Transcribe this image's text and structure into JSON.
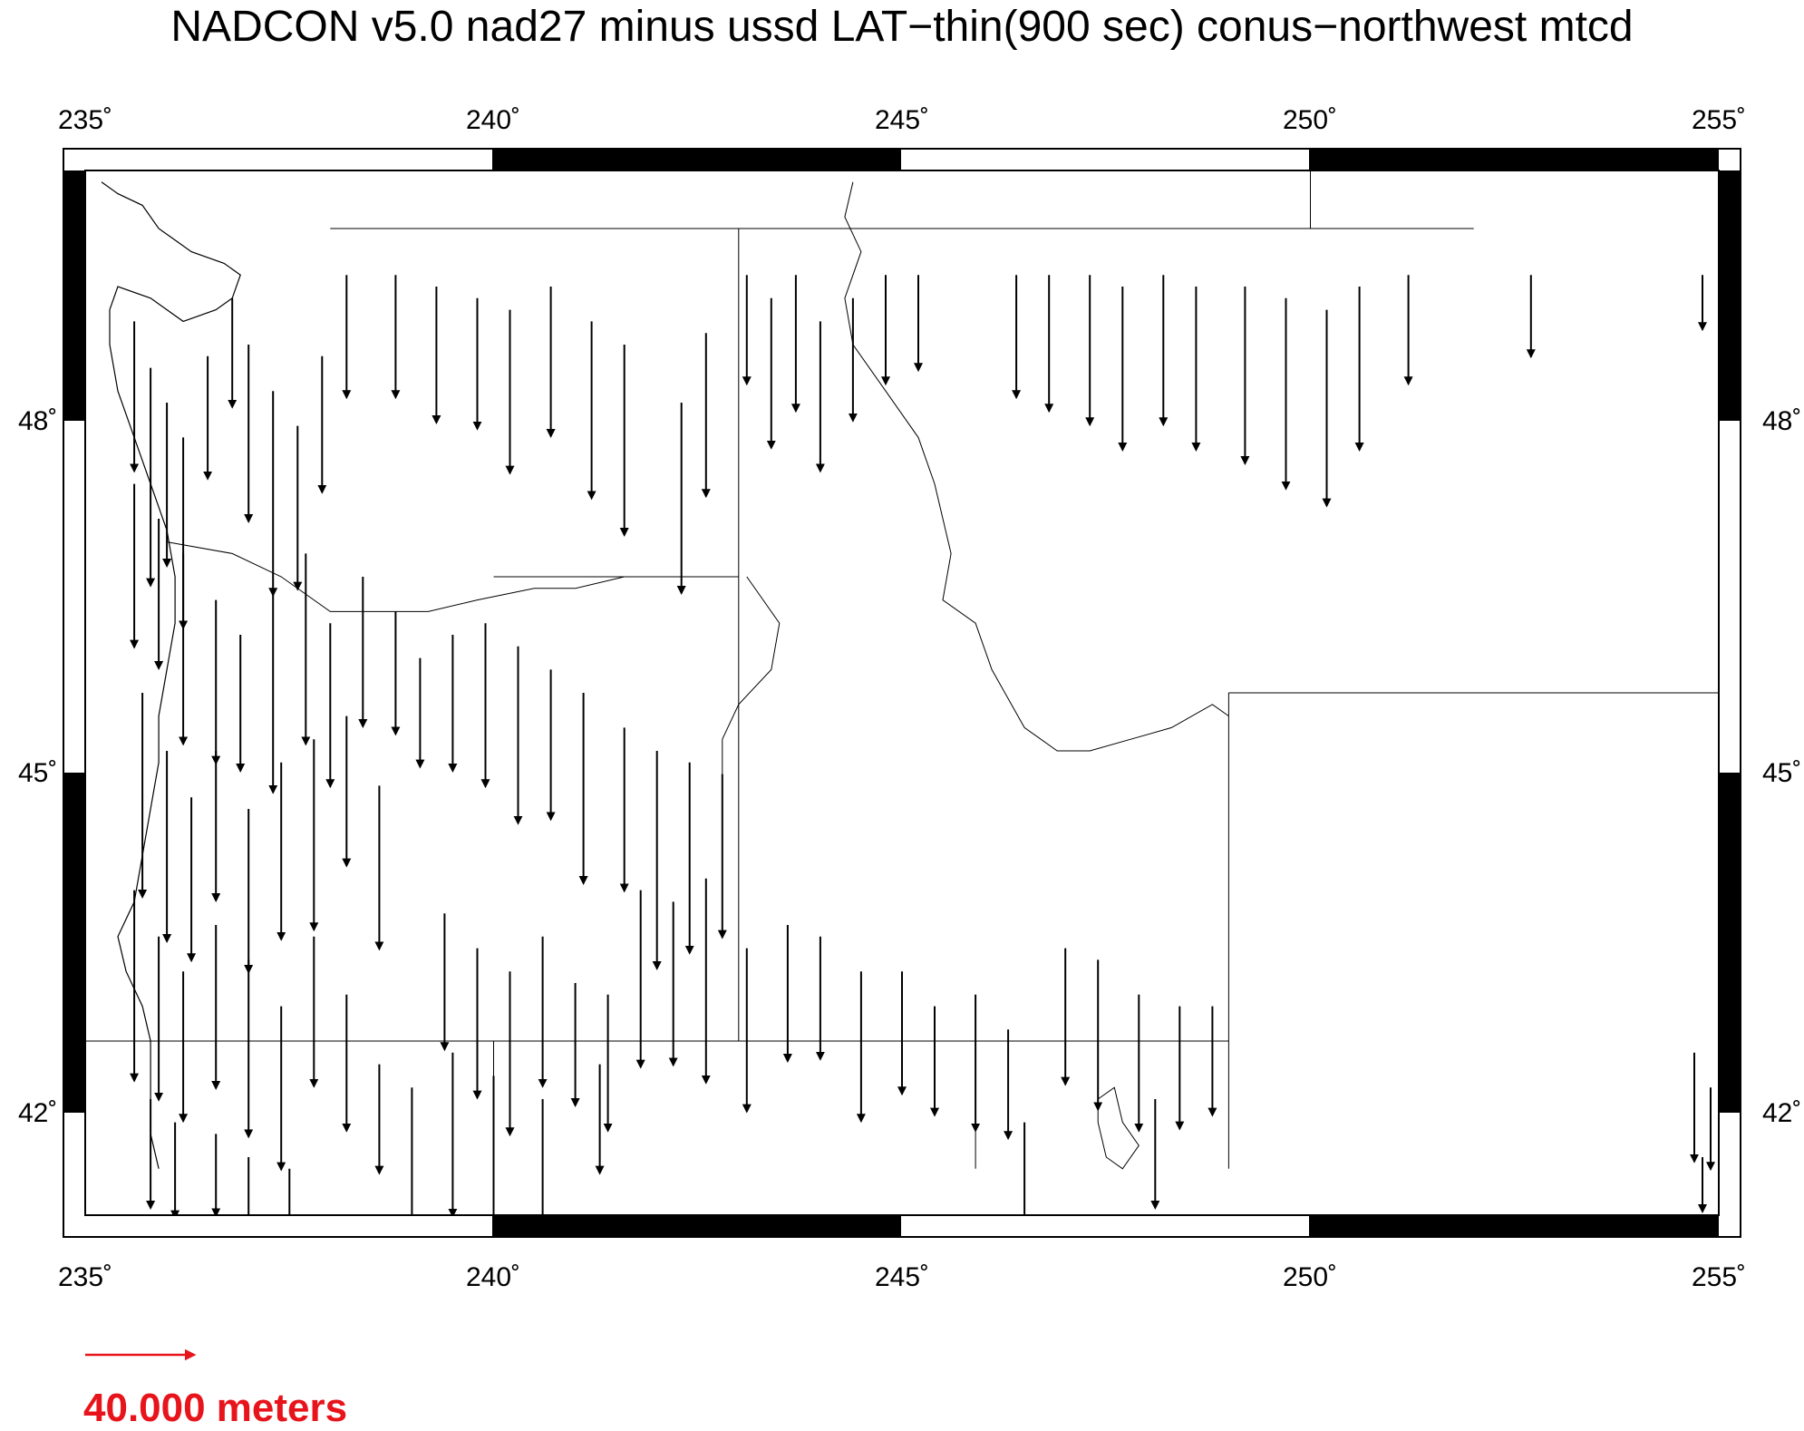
{
  "title": "NADCON v5.0 nad27 minus ussd LAT−thin(900 sec) conus−northwest mtcd",
  "scale": {
    "label": "40.000 meters",
    "arrow_meters": 40,
    "color": "#e8141b"
  },
  "map": {
    "region": "conus-northwest",
    "lon_range": [
      235,
      255
    ],
    "lat_range": [
      40.5,
      49.5
    ],
    "lon_ticks": [
      "235˚",
      "240˚",
      "245˚",
      "250˚",
      "255˚"
    ],
    "lat_ticks": [
      "48˚",
      "45˚",
      "42˚"
    ],
    "vector_color": "#000000",
    "vectors": [
      [
        235.6,
        48.2,
        55
      ],
      [
        235.8,
        47.8,
        80
      ],
      [
        236.0,
        47.5,
        60
      ],
      [
        236.2,
        47.2,
        70
      ],
      [
        236.5,
        47.9,
        45
      ],
      [
        236.8,
        48.4,
        40
      ],
      [
        237.0,
        48.0,
        65
      ],
      [
        237.3,
        47.6,
        75
      ],
      [
        237.6,
        47.3,
        60
      ],
      [
        237.9,
        47.9,
        50
      ],
      [
        238.2,
        48.6,
        45
      ],
      [
        238.8,
        48.6,
        45
      ],
      [
        239.3,
        48.5,
        50
      ],
      [
        239.8,
        48.4,
        48
      ],
      [
        240.2,
        48.3,
        60
      ],
      [
        240.7,
        48.5,
        55
      ],
      [
        241.2,
        48.2,
        65
      ],
      [
        241.6,
        48.0,
        70
      ],
      [
        242.3,
        47.5,
        70
      ],
      [
        242.6,
        48.1,
        60
      ],
      [
        243.1,
        48.6,
        40
      ],
      [
        243.4,
        48.4,
        55
      ],
      [
        243.7,
        48.6,
        50
      ],
      [
        244.0,
        48.2,
        55
      ],
      [
        244.4,
        48.4,
        45
      ],
      [
        244.8,
        48.6,
        40
      ],
      [
        245.2,
        48.6,
        35
      ],
      [
        246.4,
        48.6,
        45
      ],
      [
        246.8,
        48.6,
        50
      ],
      [
        247.3,
        48.6,
        55
      ],
      [
        247.7,
        48.5,
        60
      ],
      [
        248.2,
        48.6,
        55
      ],
      [
        248.6,
        48.5,
        60
      ],
      [
        249.2,
        48.5,
        65
      ],
      [
        249.7,
        48.4,
        70
      ],
      [
        250.2,
        48.3,
        72
      ],
      [
        250.6,
        48.5,
        60
      ],
      [
        251.2,
        48.6,
        40
      ],
      [
        252.7,
        48.6,
        30
      ],
      [
        254.8,
        48.6,
        20
      ],
      [
        235.6,
        46.8,
        60
      ],
      [
        235.9,
        46.5,
        55
      ],
      [
        236.2,
        46.2,
        70
      ],
      [
        236.6,
        45.8,
        60
      ],
      [
        236.9,
        45.5,
        50
      ],
      [
        237.3,
        45.9,
        75
      ],
      [
        237.7,
        46.2,
        70
      ],
      [
        238.0,
        45.6,
        60
      ],
      [
        238.4,
        46.0,
        55
      ],
      [
        238.8,
        45.7,
        45
      ],
      [
        239.1,
        45.3,
        40
      ],
      [
        239.5,
        45.5,
        50
      ],
      [
        239.9,
        45.6,
        60
      ],
      [
        240.3,
        45.4,
        65
      ],
      [
        240.7,
        45.2,
        55
      ],
      [
        241.1,
        45.0,
        70
      ],
      [
        241.6,
        44.7,
        60
      ],
      [
        242.0,
        44.5,
        80
      ],
      [
        242.4,
        44.4,
        70
      ],
      [
        242.8,
        44.3,
        60
      ],
      [
        235.7,
        45.0,
        75
      ],
      [
        236.0,
        44.5,
        70
      ],
      [
        236.3,
        44.1,
        60
      ],
      [
        236.6,
        44.5,
        55
      ],
      [
        237.0,
        44.0,
        60
      ],
      [
        237.4,
        44.4,
        65
      ],
      [
        237.8,
        44.6,
        70
      ],
      [
        238.2,
        44.8,
        55
      ],
      [
        238.6,
        44.2,
        60
      ],
      [
        235.6,
        43.3,
        70
      ],
      [
        235.9,
        42.9,
        60
      ],
      [
        236.2,
        42.6,
        55
      ],
      [
        236.6,
        43.0,
        60
      ],
      [
        237.0,
        42.7,
        65
      ],
      [
        237.4,
        42.3,
        60
      ],
      [
        237.8,
        42.9,
        55
      ],
      [
        238.2,
        42.4,
        50
      ],
      [
        238.6,
        41.8,
        40
      ],
      [
        239.4,
        43.1,
        50
      ],
      [
        239.8,
        42.8,
        55
      ],
      [
        240.2,
        42.6,
        60
      ],
      [
        240.6,
        42.9,
        55
      ],
      [
        241.0,
        42.5,
        45
      ],
      [
        241.4,
        42.4,
        50
      ],
      [
        241.8,
        43.3,
        65
      ],
      [
        242.2,
        43.2,
        60
      ],
      [
        242.6,
        43.4,
        75
      ],
      [
        243.1,
        42.8,
        60
      ],
      [
        243.6,
        43.0,
        50
      ],
      [
        244.0,
        42.9,
        45
      ],
      [
        244.5,
        42.6,
        55
      ],
      [
        245.0,
        42.6,
        45
      ],
      [
        245.4,
        42.3,
        40
      ],
      [
        245.9,
        42.4,
        50
      ],
      [
        246.3,
        42.1,
        40
      ],
      [
        247.0,
        42.8,
        50
      ],
      [
        247.4,
        42.7,
        55
      ],
      [
        247.9,
        42.4,
        50
      ],
      [
        248.4,
        42.3,
        45
      ],
      [
        248.8,
        42.3,
        40
      ],
      [
        239.0,
        41.6,
        50
      ],
      [
        239.5,
        41.9,
        60
      ],
      [
        240.0,
        41.7,
        55
      ],
      [
        240.6,
        41.5,
        45
      ],
      [
        241.3,
        41.8,
        40
      ],
      [
        235.8,
        41.5,
        40
      ],
      [
        236.1,
        41.3,
        35
      ],
      [
        236.6,
        41.2,
        30
      ],
      [
        237.0,
        41.0,
        35
      ],
      [
        237.5,
        40.9,
        30
      ],
      [
        246.5,
        41.3,
        40
      ],
      [
        248.1,
        41.5,
        40
      ],
      [
        254.7,
        41.9,
        40
      ],
      [
        254.9,
        41.6,
        30
      ],
      [
        254.8,
        41.0,
        20
      ]
    ],
    "state_boundaries": [
      [
        [
          238.0,
          49.0
        ],
        [
          252.0,
          49.0
        ]
      ],
      [
        [
          243.0,
          49.0
        ],
        [
          243.0,
          42.0
        ],
        [
          249.0,
          42.0
        ]
      ],
      [
        [
          240.0,
          42.0
        ],
        [
          240.0,
          40.9
        ]
      ],
      [
        [
          235.0,
          42.0
        ],
        [
          249.0,
          42.0
        ]
      ],
      [
        [
          249.0,
          45.0
        ],
        [
          255.0,
          45.0
        ]
      ],
      [
        [
          249.0,
          45.0
        ],
        [
          249.0,
          40.9
        ]
      ],
      [
        [
          245.9,
          42.0
        ],
        [
          245.9,
          40.9
        ]
      ],
      [
        [
          240.0,
          46.0
        ],
        [
          243.0,
          46.0
        ]
      ],
      [
        [
          250.0,
          49.5
        ],
        [
          250.0,
          49.0
        ]
      ]
    ],
    "rivers": [
      [
        [
          236.0,
          46.3
        ],
        [
          236.8,
          46.2
        ],
        [
          237.4,
          46.0
        ],
        [
          238.0,
          45.7
        ],
        [
          238.6,
          45.7
        ],
        [
          239.2,
          45.7
        ],
        [
          239.8,
          45.8
        ],
        [
          240.5,
          45.9
        ],
        [
          241.0,
          45.9
        ],
        [
          241.6,
          46.0
        ]
      ],
      [
        [
          244.4,
          49.4
        ],
        [
          244.3,
          49.1
        ],
        [
          244.5,
          48.8
        ],
        [
          244.3,
          48.4
        ],
        [
          244.4,
          48.0
        ],
        [
          244.8,
          47.6
        ],
        [
          245.2,
          47.2
        ],
        [
          245.4,
          46.8
        ],
        [
          245.6,
          46.2
        ],
        [
          245.5,
          45.8
        ],
        [
          245.9,
          45.6
        ],
        [
          246.1,
          45.2
        ],
        [
          246.5,
          44.7
        ],
        [
          246.9,
          44.5
        ],
        [
          247.3,
          44.5
        ],
        [
          247.8,
          44.6
        ],
        [
          248.3,
          44.7
        ],
        [
          248.8,
          44.9
        ],
        [
          249.0,
          44.8
        ]
      ],
      [
        [
          243.1,
          46.0
        ],
        [
          243.5,
          45.6
        ],
        [
          243.4,
          45.2
        ],
        [
          243.0,
          44.9
        ],
        [
          242.8,
          44.6
        ],
        [
          242.8,
          44.0
        ]
      ]
    ],
    "coastline": [
      [
        235.2,
        49.4
      ],
      [
        235.4,
        49.3
      ],
      [
        235.7,
        49.2
      ],
      [
        235.9,
        49.0
      ],
      [
        236.1,
        48.9
      ],
      [
        236.3,
        48.8
      ],
      [
        236.7,
        48.7
      ],
      [
        236.9,
        48.6
      ],
      [
        236.8,
        48.4
      ],
      [
        236.6,
        48.3
      ],
      [
        236.2,
        48.2
      ],
      [
        235.8,
        48.4
      ],
      [
        235.4,
        48.5
      ],
      [
        235.3,
        48.3
      ],
      [
        235.3,
        48.0
      ],
      [
        235.4,
        47.6
      ],
      [
        235.6,
        47.2
      ],
      [
        235.8,
        46.8
      ],
      [
        236.0,
        46.4
      ],
      [
        236.1,
        46.0
      ],
      [
        236.1,
        45.6
      ],
      [
        236.0,
        45.2
      ],
      [
        235.9,
        44.8
      ],
      [
        235.9,
        44.4
      ],
      [
        235.8,
        44.0
      ],
      [
        235.7,
        43.6
      ],
      [
        235.6,
        43.2
      ],
      [
        235.4,
        42.9
      ],
      [
        235.5,
        42.6
      ],
      [
        235.7,
        42.3
      ],
      [
        235.8,
        42.0
      ],
      [
        235.8,
        41.6
      ],
      [
        235.8,
        41.2
      ],
      [
        235.9,
        40.9
      ]
    ],
    "lake": [
      [
        247.4,
        41.5
      ],
      [
        247.6,
        41.6
      ],
      [
        247.7,
        41.3
      ],
      [
        247.9,
        41.1
      ],
      [
        247.7,
        40.9
      ],
      [
        247.5,
        41.0
      ],
      [
        247.4,
        41.3
      ]
    ]
  }
}
